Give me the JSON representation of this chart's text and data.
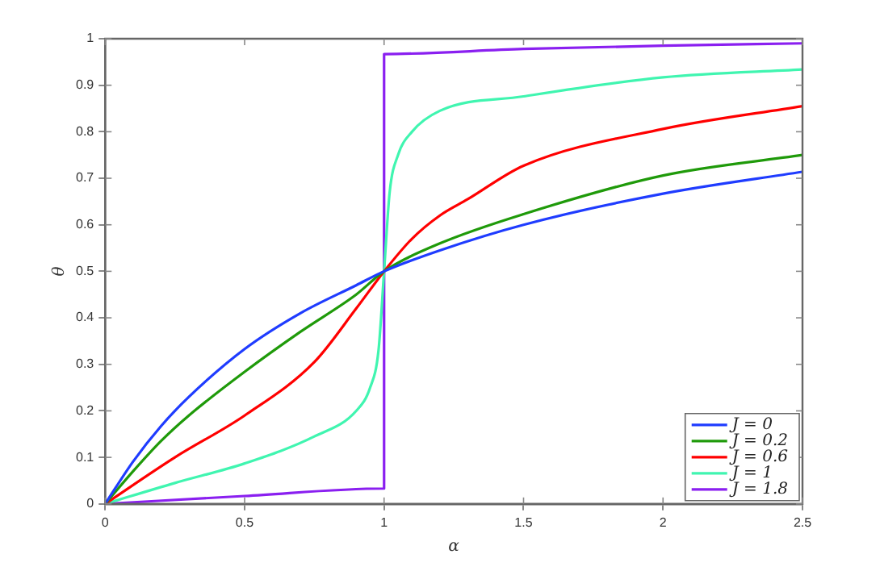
{
  "chart_data": {
    "type": "line",
    "xlabel": "α",
    "ylabel": "θ",
    "xlim": [
      0,
      2.5
    ],
    "ylim": [
      0,
      1
    ],
    "xticks": [
      0,
      0.5,
      1,
      1.5,
      2,
      2.5
    ],
    "yticks": [
      0,
      0.1,
      0.2,
      0.3,
      0.4,
      0.5,
      0.6,
      0.7,
      0.8,
      0.9,
      1
    ],
    "grid": false,
    "legend": "bottom right",
    "marker": "none",
    "line_style": "solid",
    "series": [
      {
        "name": "J = 0",
        "color": "#1f3cff",
        "x": [
          0,
          0.1,
          0.2,
          0.3,
          0.5,
          0.7,
          0.9,
          1,
          1.2,
          1.5,
          2,
          2.5
        ],
        "values": [
          0,
          0.091,
          0.167,
          0.23,
          0.333,
          0.41,
          0.47,
          0.5,
          0.545,
          0.6,
          0.667,
          0.714
        ]
      },
      {
        "name": "J = 0.2",
        "color": "#1f9a0a",
        "x": [
          0,
          0.1,
          0.2,
          0.3,
          0.5,
          0.7,
          0.9,
          1,
          1.2,
          1.5,
          2,
          2.5
        ],
        "values": [
          0,
          0.07,
          0.135,
          0.19,
          0.284,
          0.37,
          0.45,
          0.5,
          0.56,
          0.623,
          0.706,
          0.75
        ]
      },
      {
        "name": "J = 0.6",
        "color": "#ff0000",
        "x": [
          0,
          0.25,
          0.5,
          0.75,
          0.9,
          1,
          1.1,
          1.2,
          1.3,
          1.5,
          2,
          2.5
        ],
        "values": [
          0,
          0.1,
          0.19,
          0.305,
          0.42,
          0.5,
          0.57,
          0.62,
          0.655,
          0.727,
          0.806,
          0.855
        ]
      },
      {
        "name": "J = 1",
        "color": "#40f5b0",
        "x": [
          0,
          0.25,
          0.5,
          0.75,
          0.9,
          0.95,
          0.98,
          1,
          1.02,
          1.05,
          1.1,
          1.2,
          1.5,
          2,
          2.5
        ],
        "values": [
          0,
          0.045,
          0.087,
          0.145,
          0.2,
          0.25,
          0.33,
          0.5,
          0.67,
          0.75,
          0.8,
          0.845,
          0.876,
          0.917,
          0.934
        ]
      },
      {
        "name": "J = 1.8",
        "color": "#8a1ff0",
        "x": [
          0,
          0.5,
          1,
          1,
          1.5,
          2,
          2.5
        ],
        "values": [
          0,
          0.017,
          0.033,
          0.967,
          0.978,
          0.985,
          0.99
        ]
      }
    ]
  }
}
